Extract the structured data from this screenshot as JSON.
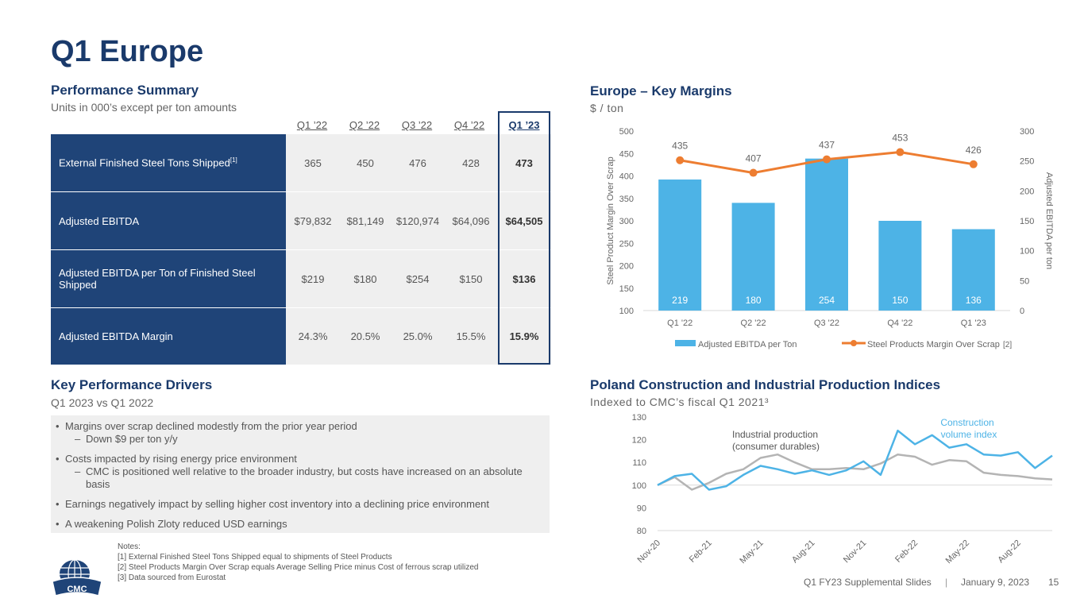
{
  "page": {
    "title": "Q1 Europe",
    "footer_deck": "Q1 FY23 Supplemental Slides",
    "footer_sep": "|",
    "footer_date": "January 9, 2023",
    "page_number": "15",
    "logo_text": "CMC"
  },
  "performance": {
    "heading": "Performance Summary",
    "subheading": "Units in 000’s except per ton amounts",
    "columns": [
      "Q1 ’22",
      "Q2 ’22",
      "Q3 ’22",
      "Q4 ’22",
      "Q1 ’23"
    ],
    "rows": [
      {
        "label": "External Finished Steel Tons Shipped",
        "sup": "[1]",
        "values": [
          "365",
          "450",
          "476",
          "428",
          "473"
        ]
      },
      {
        "label": "Adjusted EBITDA",
        "sup": "",
        "values": [
          "$79,832",
          "$81,149",
          "$120,974",
          "$64,096",
          "$64,505"
        ]
      },
      {
        "label": "Adjusted EBITDA per Ton of Finished Steel Shipped",
        "sup": "",
        "values": [
          "$219",
          "$180",
          "$254",
          "$150",
          "$136"
        ]
      },
      {
        "label": "Adjusted EBITDA Margin",
        "sup": "",
        "values": [
          "24.3%",
          "20.5%",
          "25.0%",
          "15.5%",
          "15.9%"
        ]
      }
    ]
  },
  "drivers": {
    "heading": "Key Performance Drivers",
    "subheading": "Q1 2023 vs Q1 2022",
    "b1": "Margins over scrap declined modestly from the prior year period",
    "b1s1": "Down $9 per ton y/y",
    "b2": "Costs impacted by rising energy price environment",
    "b2s1a": "CMC is positioned well relative to the broader industry, but costs have increased on an absolute",
    "b2s1b": "basis",
    "b3": "Earnings negatively impact by selling higher cost inventory into a declining price environment",
    "b4": "A weakening Polish Zloty reduced USD earnings",
    "bullet": "•",
    "dash": "–"
  },
  "notes": {
    "title": "Notes:",
    "n1": "[1]  External Finished Steel Tons Shipped equal to shipments of Steel Products",
    "n2": "[2]  Steel Products Margin Over Scrap equals Average Selling Price minus Cost of ferrous scrap utilized",
    "n3": "[3]  Data sourced from Eurostat"
  },
  "margins": {
    "heading": "Europe – Key Margins",
    "subheading": "$ / ton"
  },
  "poland": {
    "heading": "Poland Construction and Industrial Production Indices",
    "subheading": "Indexed to CMC’s fiscal Q1 2021³"
  },
  "chart_data": [
    {
      "type": "bar",
      "title": "Europe – Key Margins",
      "categories": [
        "Q1 '22",
        "Q2 '22",
        "Q3 '22",
        "Q4 '22",
        "Q1 '23"
      ],
      "series": [
        {
          "name": "Adjusted EBITDA per Ton",
          "axis": "right",
          "type": "bar",
          "color": "#4db3e6",
          "values": [
            219,
            180,
            254,
            150,
            136
          ],
          "labels": [
            "219",
            "180",
            "254",
            "150",
            "136"
          ]
        },
        {
          "name": "Steel Products Margin Over Scrap",
          "legend_suffix": "[2]",
          "axis": "left",
          "type": "line",
          "color": "#ed7d31",
          "values": [
            435,
            407,
            437,
            453,
            426
          ],
          "labels": [
            "435",
            "407",
            "437",
            "453",
            "426"
          ]
        }
      ],
      "ylabel_left": "Steel Product Margin Over Scrap",
      "ylabel_right": "Adjusted EBITDA per ton",
      "ylim_left": [
        100,
        500
      ],
      "ylim_right": [
        0,
        300
      ],
      "yticks_left": [
        "100",
        "150",
        "200",
        "250",
        "300",
        "350",
        "400",
        "450",
        "500"
      ],
      "yticks_right": [
        "0",
        "50",
        "100",
        "150",
        "200",
        "250",
        "300"
      ],
      "legend_position": "bottom"
    },
    {
      "type": "line",
      "title": "Poland Construction and Industrial Production Indices",
      "ylim": [
        80,
        130
      ],
      "yticks": [
        "80",
        "90",
        "100",
        "110",
        "120",
        "130"
      ],
      "xticks": [
        "Nov-20",
        "Feb-21",
        "May-21",
        "Aug-21",
        "Nov-21",
        "Feb-22",
        "May-22",
        "Aug-22"
      ],
      "xtick_index": [
        0,
        3,
        6,
        9,
        12,
        15,
        18,
        21
      ],
      "baseline": 100,
      "series": [
        {
          "name": "Construction volume index",
          "color": "#4db3e6",
          "values": [
            100,
            104,
            105,
            98,
            99.5,
            104.5,
            108.5,
            107,
            105,
            106.5,
            104.5,
            106.5,
            110.5,
            104.5,
            124,
            118,
            122,
            116.5,
            118,
            113.5,
            113,
            114.5,
            107.5,
            113
          ]
        },
        {
          "name": "Industrial production (consumer durables)",
          "color": "#b4b4b4",
          "values": [
            100,
            103.5,
            98,
            101,
            105,
            107,
            112,
            113.5,
            110,
            107,
            107,
            107.5,
            107,
            109.5,
            113.5,
            112.5,
            109,
            111,
            110.5,
            105.5,
            104.5,
            104,
            103,
            102.5
          ]
        }
      ],
      "annotations": [
        {
          "text": "Industrial production",
          "series": "Industrial production (consumer durables)"
        },
        {
          "text": "(consumer durables)",
          "series": "Industrial production (consumer durables)"
        },
        {
          "text": "Construction",
          "series": "Construction volume index"
        },
        {
          "text": "volume index",
          "series": "Construction volume index"
        }
      ]
    }
  ]
}
